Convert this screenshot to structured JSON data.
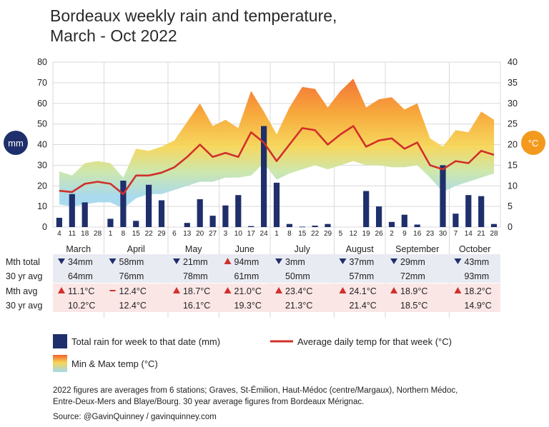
{
  "title_lines": [
    "Bordeaux weekly rain and temperature,",
    "March - Oct 2022"
  ],
  "chart_data": {
    "type": "combo",
    "left_axis": {
      "label": "mm",
      "range": [
        0,
        80
      ],
      "ticks": [
        0,
        10,
        20,
        30,
        40,
        50,
        60,
        70,
        80
      ],
      "color": "#1f2f6b"
    },
    "right_axis": {
      "label": "°C",
      "range": [
        0,
        40
      ],
      "ticks": [
        0,
        5,
        10,
        15,
        20,
        25,
        30,
        35,
        40
      ],
      "color": "#f39a1e"
    },
    "x_tick_labels": [
      "4",
      "11",
      "18",
      "28",
      "1",
      "8",
      "15",
      "22",
      "29",
      "6",
      "13",
      "20",
      "27",
      "3",
      "10",
      "17",
      "24",
      "1",
      "8",
      "15",
      "22",
      "29",
      "5",
      "12",
      "19",
      "26",
      "2",
      "9",
      "16",
      "23",
      "30",
      "7",
      "14",
      "21",
      "28"
    ],
    "months": [
      {
        "name": "March",
        "start": 0,
        "end": 4
      },
      {
        "name": "April",
        "start": 4,
        "end": 9
      },
      {
        "name": "May",
        "start": 9,
        "end": 13
      },
      {
        "name": "June",
        "start": 13,
        "end": 17
      },
      {
        "name": "July",
        "start": 17,
        "end": 22
      },
      {
        "name": "August",
        "start": 22,
        "end": 26
      },
      {
        "name": "September",
        "start": 26,
        "end": 31
      },
      {
        "name": "October",
        "start": 31,
        "end": 35
      }
    ],
    "rain_mm": [
      4.5,
      16,
      12,
      0,
      4,
      22.5,
      3,
      20.5,
      13,
      0,
      2,
      13.5,
      5.5,
      10.5,
      15.5,
      0.5,
      49,
      21.5,
      1.5,
      0.2,
      0.7,
      1.5,
      0,
      0,
      17.5,
      10,
      2.5,
      6,
      1.2,
      0,
      30,
      6.5,
      15.5,
      15,
      1.5
    ],
    "avg_temp": [
      8.8,
      8.5,
      10.5,
      11,
      10.5,
      8,
      12.5,
      12.5,
      13.2,
      14.5,
      17,
      20,
      17,
      18,
      17,
      23,
      20.5,
      16,
      20,
      24,
      23.5,
      20,
      22.5,
      24.5,
      19.5,
      21,
      21.5,
      19,
      20.5,
      15,
      14,
      16,
      15.5,
      18.5,
      17.5
    ],
    "min_temp": [
      5.5,
      5,
      5.5,
      6,
      6,
      4.5,
      7,
      8,
      8,
      9,
      10,
      11,
      11,
      12,
      12,
      12.5,
      15.5,
      11.5,
      13,
      14,
      15,
      14,
      15,
      16,
      15,
      15,
      14.5,
      14.5,
      15,
      12,
      8.5,
      10,
      11,
      12,
      13
    ],
    "max_temp": [
      13.5,
      12.5,
      15.5,
      16,
      15.5,
      12,
      19,
      18.5,
      19.5,
      21,
      25.5,
      30,
      24.5,
      26,
      24,
      33,
      28,
      22.5,
      29,
      34,
      33.5,
      29,
      33,
      36,
      29,
      31,
      31.5,
      28.5,
      30,
      21.5,
      19.5,
      23.5,
      23,
      28,
      26
    ],
    "series_names": {
      "rain": "Total rain for week to that date (mm)",
      "avg": "Average daily temp for that week (°C)",
      "band": "Min & Max temp (°C)"
    },
    "colors": {
      "rain": "#1f2f6b",
      "avg": "#d0302b",
      "band_hot": "#f2622a",
      "band_warm": "#f7c13a",
      "band_mild": "#cbe6a8",
      "band_cool": "#a5d8ec"
    }
  },
  "table": {
    "row_labels": [
      "Mth total",
      "30 yr avg",
      "Mth avg",
      "30 yr avg"
    ],
    "rain_total": [
      "34mm",
      "58mm",
      "21mm",
      "94mm",
      "3mm",
      "37mm",
      "29mm",
      "43mm"
    ],
    "rain_dir": [
      "down",
      "down",
      "down",
      "up",
      "down",
      "down",
      "down",
      "down"
    ],
    "rain_30yr": [
      "64mm",
      "76mm",
      "78mm",
      "61mm",
      "50mm",
      "57mm",
      "72mm",
      "93mm"
    ],
    "temp_avg": [
      "11.1°C",
      "12.4°C",
      "18.7°C",
      "21.0°C",
      "23.4°C",
      "24.1°C",
      "18.9°C",
      "18.2°C"
    ],
    "temp_dir": [
      "up",
      "same",
      "up",
      "up",
      "up",
      "up",
      "up",
      "up"
    ],
    "temp_30yr": [
      "10.2°C",
      "12.4°C",
      "16.1°C",
      "19.3°C",
      "21.3°C",
      "21.4°C",
      "18.5°C",
      "14.9°C"
    ],
    "row_bg": [
      "#e9ebf3",
      "#e9ebf3",
      "#fbe6e6",
      "#fbe6e6"
    ],
    "arrow_colors": {
      "down": "#1f2f6b",
      "up": "#d0302b",
      "same": "#d0302b"
    }
  },
  "notes": [
    "2022 figures are averages from 6 stations; Graves, St-Émilion, Haut-Médoc (centre/Margaux), Northern Médoc,",
    "Entre-Deux-Mers and Blaye/Bourg. 30 year average figures from Bordeaux Mérignac.",
    "Source: @GavinQuinney / gavinquinney.com"
  ]
}
